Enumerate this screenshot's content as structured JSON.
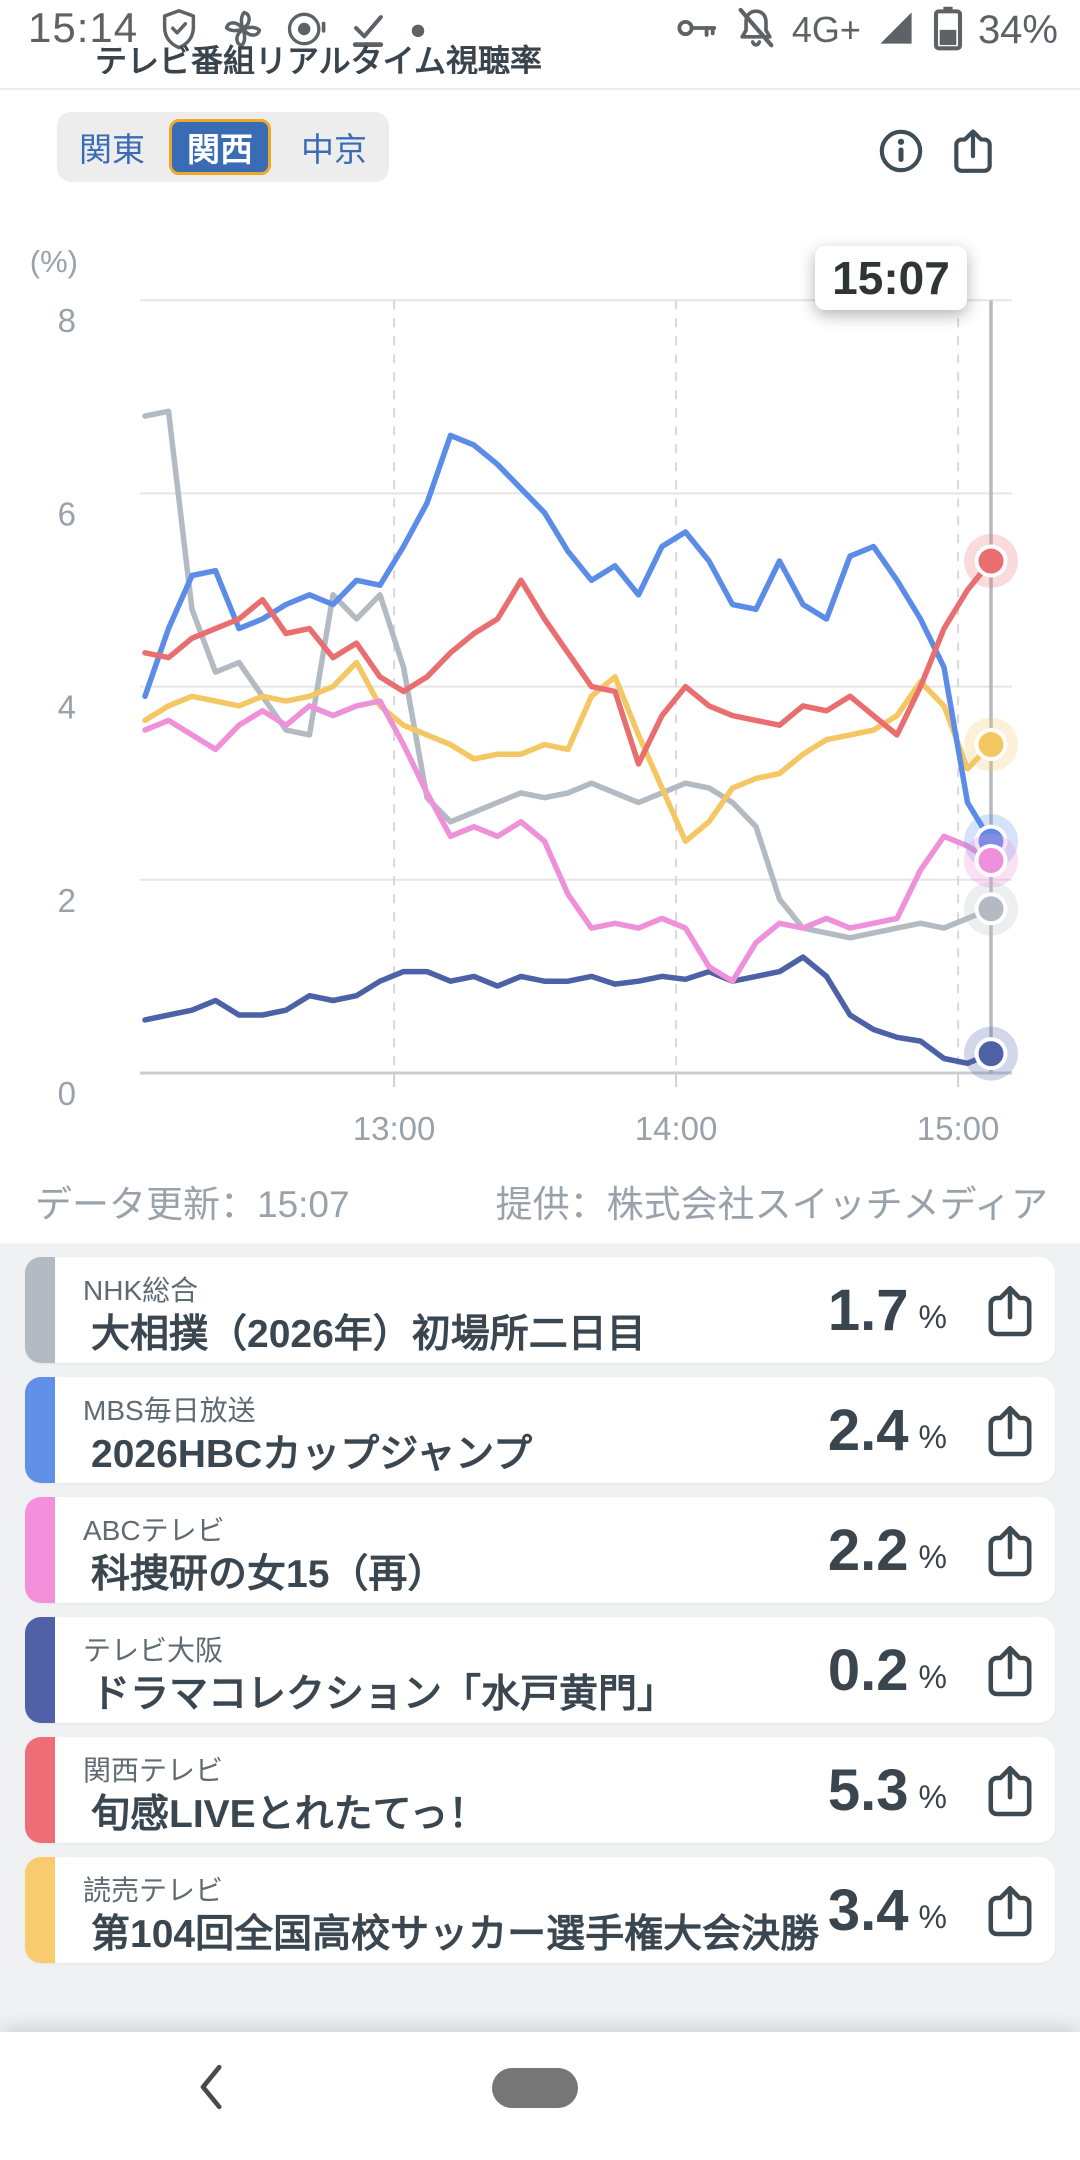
{
  "status_bar": {
    "time": "15:14",
    "network": "4G+",
    "battery": "34%"
  },
  "header": {
    "title": "テレビ番組リアルタイム視聴率"
  },
  "tabs": {
    "items": [
      {
        "label": "関東",
        "selected": false
      },
      {
        "label": "関西",
        "selected": true
      },
      {
        "label": "中京",
        "selected": false
      }
    ]
  },
  "tooltip": {
    "time": "15:07"
  },
  "chart_data": {
    "type": "line",
    "title": "テレビ番組リアルタイム視聴率（関西）",
    "ylabel": "(%)",
    "ylim": [
      0,
      8
    ],
    "y_ticks": [
      0,
      2,
      4,
      6,
      8
    ],
    "x_axis_ticks": [
      "13:00",
      "14:00",
      "15:00"
    ],
    "current_time": "15:07",
    "grid": true,
    "legend_position": "none",
    "x": [
      "12:07",
      "12:12",
      "12:17",
      "12:22",
      "12:27",
      "12:32",
      "12:37",
      "12:42",
      "12:47",
      "12:52",
      "12:57",
      "13:02",
      "13:07",
      "13:12",
      "13:17",
      "13:22",
      "13:27",
      "13:32",
      "13:37",
      "13:42",
      "13:47",
      "13:52",
      "13:57",
      "14:02",
      "14:07",
      "14:12",
      "14:17",
      "14:22",
      "14:27",
      "14:32",
      "14:37",
      "14:42",
      "14:47",
      "14:52",
      "14:57",
      "15:02",
      "15:07"
    ],
    "series": [
      {
        "name": "NHK総合",
        "color": "#b4bac2",
        "halo": "rgba(180,186,194,0.25)",
        "end_value": 1.7,
        "values": [
          6.8,
          6.85,
          4.8,
          4.15,
          4.25,
          3.9,
          3.55,
          3.5,
          4.95,
          4.7,
          4.95,
          4.2,
          2.85,
          2.6,
          2.7,
          2.8,
          2.9,
          2.85,
          2.9,
          3.0,
          2.9,
          2.8,
          2.9,
          3.0,
          2.95,
          2.8,
          2.55,
          1.8,
          1.5,
          1.45,
          1.4,
          1.45,
          1.5,
          1.55,
          1.5,
          1.6,
          1.7
        ]
      },
      {
        "name": "読売テレビ",
        "color": "#f5c763",
        "halo": "rgba(245,199,99,0.25)",
        "end_value": 3.4,
        "values": [
          3.65,
          3.8,
          3.9,
          3.85,
          3.8,
          3.9,
          3.85,
          3.9,
          4.0,
          4.25,
          3.8,
          3.6,
          3.5,
          3.4,
          3.25,
          3.3,
          3.3,
          3.4,
          3.35,
          3.9,
          4.1,
          3.5,
          2.95,
          2.4,
          2.6,
          2.95,
          3.05,
          3.1,
          3.3,
          3.45,
          3.5,
          3.55,
          3.7,
          4.05,
          3.8,
          3.15,
          3.4
        ]
      },
      {
        "name": "テレビ大阪",
        "color": "#4d62a6",
        "halo": "rgba(77,98,166,0.25)",
        "end_value": 0.2,
        "values": [
          0.55,
          0.6,
          0.65,
          0.75,
          0.6,
          0.6,
          0.65,
          0.8,
          0.75,
          0.8,
          0.95,
          1.05,
          1.05,
          0.95,
          1.0,
          0.9,
          1.0,
          0.95,
          0.95,
          1.0,
          0.92,
          0.95,
          1.0,
          0.97,
          1.05,
          0.95,
          1.0,
          1.05,
          1.2,
          1.0,
          0.6,
          0.45,
          0.37,
          0.33,
          0.15,
          0.1,
          0.2
        ]
      },
      {
        "name": "MBS毎日放送",
        "color": "#5b8ce8",
        "halo": "rgba(91,140,232,0.25)",
        "end_value": 2.4,
        "values": [
          3.9,
          4.6,
          5.15,
          5.2,
          4.6,
          4.7,
          4.85,
          4.95,
          4.85,
          5.1,
          5.05,
          5.45,
          5.9,
          6.6,
          6.5,
          6.3,
          6.05,
          5.8,
          5.4,
          5.1,
          5.25,
          4.95,
          5.45,
          5.6,
          5.3,
          4.85,
          4.8,
          5.3,
          4.85,
          4.7,
          5.35,
          5.45,
          5.1,
          4.7,
          4.2,
          2.8,
          2.4
        ]
      },
      {
        "name": "ABCテレビ",
        "color": "#ee90da",
        "halo": "rgba(238,144,218,0.28)",
        "end_value": 2.2,
        "values": [
          3.55,
          3.65,
          3.5,
          3.35,
          3.6,
          3.75,
          3.6,
          3.8,
          3.7,
          3.8,
          3.85,
          3.4,
          2.9,
          2.45,
          2.55,
          2.45,
          2.6,
          2.4,
          1.85,
          1.5,
          1.55,
          1.5,
          1.6,
          1.5,
          1.1,
          0.95,
          1.35,
          1.55,
          1.5,
          1.6,
          1.5,
          1.55,
          1.6,
          2.1,
          2.45,
          2.35,
          2.2
        ]
      },
      {
        "name": "関西テレビ",
        "color": "#e96e70",
        "halo": "rgba(233,110,112,0.25)",
        "end_value": 5.3,
        "values": [
          4.35,
          4.3,
          4.5,
          4.6,
          4.7,
          4.9,
          4.55,
          4.6,
          4.3,
          4.45,
          4.1,
          3.95,
          4.1,
          4.35,
          4.55,
          4.7,
          5.1,
          4.7,
          4.35,
          4.0,
          3.95,
          3.2,
          3.7,
          4.0,
          3.8,
          3.7,
          3.65,
          3.6,
          3.8,
          3.75,
          3.9,
          3.7,
          3.5,
          4.0,
          4.6,
          5.0,
          5.3
        ]
      }
    ]
  },
  "chart_footer": {
    "updated": "データ更新：15:07",
    "provider": "提供：株式会社スイッチメディア"
  },
  "programs": [
    {
      "channel": "NHK総合",
      "title": "大相撲（2026年）初場所二日目",
      "value": "1.7",
      "unit": "%",
      "accent": "#b4bac2"
    },
    {
      "channel": "MBS毎日放送",
      "title": "2026HBCカップジャンプ",
      "value": "2.4",
      "unit": "%",
      "accent": "#6090e8"
    },
    {
      "channel": "ABCテレビ",
      "title": "科捜研の女15（再）",
      "value": "2.2",
      "unit": "%",
      "accent": "#f48fdc"
    },
    {
      "channel": "テレビ大阪",
      "title": "ドラマコレクション「水戸黄門」",
      "value": "0.2",
      "unit": "%",
      "accent": "#5061a8"
    },
    {
      "channel": "関西テレビ",
      "title": "旬感LIVEとれたてっ！",
      "value": "5.3",
      "unit": "%",
      "accent": "#ee6e78"
    },
    {
      "channel": "読売テレビ",
      "title": "第104回全国高校サッカー選手権大会決勝",
      "value": "3.4",
      "unit": "%",
      "accent": "#f7cb6e"
    }
  ],
  "colors": {
    "tab_selected_bg": "#3a6cb5",
    "tab_selected_border": "#efa827",
    "icon_dark": "#3f4e56",
    "axis_text": "#99a1aa",
    "gridline": "#e5e5e5",
    "current_line": "#b6bac0"
  }
}
